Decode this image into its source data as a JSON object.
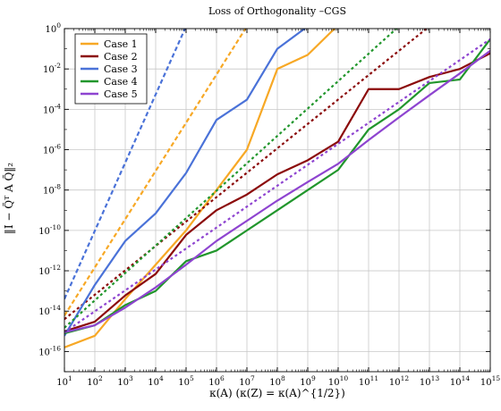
{
  "chart_data": {
    "type": "line",
    "title": "Loss of Orthogonality –CGS",
    "xlabel": "κ(A) (κ(Z) = κ(A)^{1/2})",
    "ylabel": "‖I − Q̃ᵀ A Q̃‖₂",
    "x_scale": "log",
    "y_scale": "log",
    "xlim": [
      10.0,
      1000000000000000.0
    ],
    "ylim": [
      1e-17,
      1.0
    ],
    "x_ticks": [
      {
        "value": 10.0,
        "label": "10^1"
      },
      {
        "value": 100.0,
        "label": "10^2"
      },
      {
        "value": 1000.0,
        "label": "10^3"
      },
      {
        "value": 10000.0,
        "label": "10^4"
      },
      {
        "value": 100000.0,
        "label": "10^5"
      },
      {
        "value": 1000000.0,
        "label": "10^6"
      },
      {
        "value": 10000000.0,
        "label": "10^7"
      },
      {
        "value": 100000000.0,
        "label": "10^8"
      },
      {
        "value": 1000000000.0,
        "label": "10^9"
      },
      {
        "value": 10000000000.0,
        "label": "10^10"
      },
      {
        "value": 100000000000.0,
        "label": "10^11"
      },
      {
        "value": 1000000000000.0,
        "label": "10^12"
      },
      {
        "value": 10000000000000.0,
        "label": "10^13"
      },
      {
        "value": 100000000000000.0,
        "label": "10^14"
      },
      {
        "value": 1000000000000000.0,
        "label": "10^15"
      }
    ],
    "y_ticks": [
      {
        "value": 1e-16,
        "label": "10^-16"
      },
      {
        "value": 1e-14,
        "label": "10^-14"
      },
      {
        "value": 1e-12,
        "label": "10^-12"
      },
      {
        "value": 1e-10,
        "label": "10^-10"
      },
      {
        "value": 1e-08,
        "label": "10^-8"
      },
      {
        "value": 1e-06,
        "label": "10^-6"
      },
      {
        "value": 0.0001,
        "label": "10^-4"
      },
      {
        "value": 0.01,
        "label": "10^-2"
      },
      {
        "value": 1,
        "label": "10^0"
      }
    ],
    "grid": true,
    "legend_position": "top-left",
    "series": [
      {
        "name": "Case 1",
        "color": "#f7a825",
        "style": "solid",
        "x": [
          10.0,
          100.0,
          1000.0,
          10000.0,
          100000.0,
          1000000.0,
          10000000.0,
          100000000.0,
          1000000000.0,
          10000000000.0
        ],
        "y": [
          1.6e-16,
          6e-16,
          4e-14,
          2e-12,
          1e-10,
          1e-08,
          1e-06,
          0.01,
          0.05,
          1.5
        ]
      },
      {
        "name": "Case 1 (bound)",
        "color": "#f7a825",
        "style": "dashed",
        "x": [
          10.0,
          10000000.0
        ],
        "y": [
          6e-15,
          1.3
        ]
      },
      {
        "name": "Case 2",
        "color": "#8b0a0a",
        "style": "solid",
        "x": [
          10.0,
          100.0,
          1000.0,
          10000.0,
          100000.0,
          1000000.0,
          10000000.0,
          100000000.0,
          1000000000.0,
          10000000000.0,
          100000000000.0,
          1000000000000.0,
          10000000000000.0,
          100000000000000.0,
          1000000000000000.0
        ],
        "y": [
          1e-15,
          3e-15,
          6e-14,
          7e-13,
          6e-11,
          1e-09,
          6e-09,
          6e-08,
          3e-07,
          2.5e-06,
          0.001,
          0.001,
          0.004,
          0.01,
          0.06
        ]
      },
      {
        "name": "Case 2 (bound)",
        "color": "#8b0a0a",
        "style": "dotted",
        "x": [
          10.0,
          10000000000000.0
        ],
        "y": [
          4e-15,
          1.3
        ]
      },
      {
        "name": "Case 3",
        "color": "#4a72d8",
        "style": "solid",
        "x": [
          10.0,
          100.0,
          1000.0,
          10000.0,
          100000.0,
          1000000.0,
          10000000.0,
          100000000.0,
          1000000000.0
        ],
        "y": [
          6e-16,
          2e-13,
          3e-11,
          7e-10,
          7e-08,
          3e-05,
          0.0003,
          0.1,
          1.3
        ]
      },
      {
        "name": "Case 3 (bound)",
        "color": "#4a72d8",
        "style": "dashed",
        "x": [
          10.0,
          100000.0
        ],
        "y": [
          4e-14,
          1.3
        ]
      },
      {
        "name": "Case 4",
        "color": "#21962c",
        "style": "solid",
        "x": [
          10.0,
          100.0,
          1000.0,
          10000.0,
          100000.0,
          1000000.0,
          10000000.0,
          100000000.0,
          1000000000.0,
          10000000000.0,
          100000000000.0,
          1000000000000.0,
          10000000000000.0,
          100000000000000.0,
          1000000000000000.0
        ],
        "y": [
          8e-16,
          2e-15,
          2e-14,
          1e-13,
          3e-12,
          1e-11,
          1e-10,
          1e-09,
          1e-08,
          1e-07,
          1e-05,
          0.0001,
          0.002,
          0.003,
          0.3
        ]
      },
      {
        "name": "Case 4 (bound)",
        "color": "#21962c",
        "style": "dotted",
        "x": [
          10.0,
          1000000000000.0
        ],
        "y": [
          1.5e-15,
          1.3
        ]
      },
      {
        "name": "Case 5",
        "color": "#8e44d0",
        "style": "solid",
        "x": [
          10.0,
          100.0,
          1000.0,
          10000.0,
          100000.0,
          1000000.0,
          10000000.0,
          100000000.0,
          1000000000.0,
          10000000000.0,
          100000000000.0,
          1000000000000.0,
          10000000000000.0,
          100000000000000.0,
          1000000000000000.0
        ],
        "y": [
          9e-16,
          2e-15,
          1.5e-14,
          1.5e-13,
          2e-12,
          3e-11,
          3e-10,
          3e-09,
          2.5e-08,
          2e-07,
          3e-06,
          4e-05,
          0.0005,
          0.006,
          0.08
        ]
      },
      {
        "name": "Case 5 (bound)",
        "color": "#8e44d0",
        "style": "dotted",
        "x": [
          10.0,
          1000000000000000.0
        ],
        "y": [
          9e-16,
          0.3
        ]
      }
    ],
    "legend": [
      "Case 1",
      "Case 2",
      "Case 3",
      "Case 4",
      "Case 5"
    ]
  }
}
